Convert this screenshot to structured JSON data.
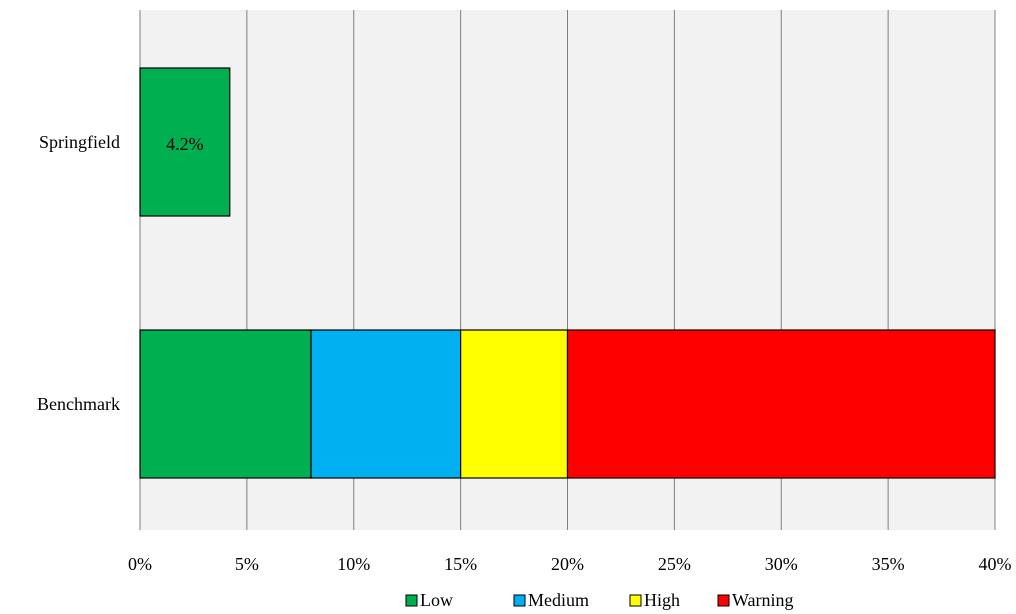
{
  "chart_data": {
    "type": "bar",
    "orientation": "horizontal",
    "stacked": true,
    "title": "",
    "xlabel": "",
    "ylabel": "",
    "xlim": [
      0,
      40
    ],
    "x_ticks": [
      "0%",
      "5%",
      "10%",
      "15%",
      "20%",
      "25%",
      "30%",
      "35%",
      "40%"
    ],
    "x_tick_values": [
      0,
      5,
      10,
      15,
      20,
      25,
      30,
      35,
      40
    ],
    "grid": "vertical",
    "legend_position": "bottom",
    "categories": [
      "Springfield",
      "Benchmark"
    ],
    "segments": [
      {
        "category": "Springfield",
        "bars": [
          {
            "series": "Low",
            "start": 0,
            "end": 4.2,
            "label": "4.2%"
          }
        ]
      },
      {
        "category": "Benchmark",
        "bars": [
          {
            "series": "Low",
            "start": 0,
            "end": 8
          },
          {
            "series": "Medium",
            "start": 8,
            "end": 15
          },
          {
            "series": "High",
            "start": 15,
            "end": 20
          },
          {
            "series": "Warning",
            "start": 20,
            "end": 40
          }
        ]
      }
    ],
    "legend": [
      {
        "name": "Low",
        "color": "#00b050"
      },
      {
        "name": "Medium",
        "color": "#00b0f0"
      },
      {
        "name": "High",
        "color": "#ffff00"
      },
      {
        "name": "Warning",
        "color": "#ff0000"
      }
    ],
    "colors": {
      "plot_background": "#f2f2f2",
      "gridline": "#7f7f7f",
      "bar_outline": "#000000"
    }
  }
}
